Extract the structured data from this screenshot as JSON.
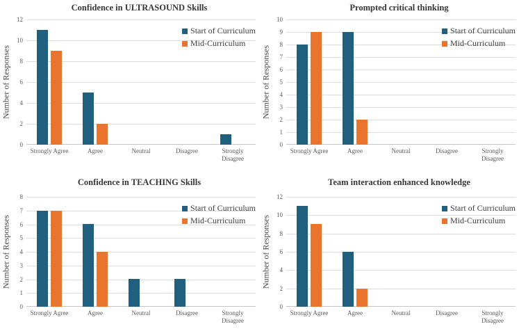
{
  "colors": {
    "series_start": "#215f7e",
    "series_mid": "#e8742e",
    "gridline": "#dcdcdc",
    "axis_line": "#c6c6c6",
    "title_text": "#373737",
    "tick_text": "#595959"
  },
  "chart_data": [
    {
      "type": "bar",
      "title": "Confidence in ULTRASOUND Skills",
      "ylabel": "Number of Responses",
      "xlabel": "",
      "categories": [
        "Strongly Agree",
        "Agree",
        "Neutral",
        "Disagree",
        "Strongly Disagree"
      ],
      "series": [
        {
          "name": "Start of Curriculum",
          "color": "#215f7e",
          "values": [
            11,
            5,
            0,
            0,
            1
          ]
        },
        {
          "name": "Mid-Curriculum",
          "color": "#e8742e",
          "values": [
            9,
            2,
            0,
            0,
            0
          ]
        }
      ],
      "ylim": [
        0,
        12
      ],
      "ytick_step": 2,
      "grid": true,
      "legend_position": "top-right"
    },
    {
      "type": "bar",
      "title": "Prompted critical thinking",
      "ylabel": "Number of Responses",
      "xlabel": "",
      "categories": [
        "Strongly Agree",
        "Agree",
        "Neutral",
        "Disagree",
        "Strongly Disagree"
      ],
      "series": [
        {
          "name": "Start of Curriculum",
          "color": "#215f7e",
          "values": [
            8,
            9,
            0,
            0,
            0
          ]
        },
        {
          "name": "Mid-Curriculum",
          "color": "#e8742e",
          "values": [
            9,
            2,
            0,
            0,
            0
          ]
        }
      ],
      "ylim": [
        0,
        10
      ],
      "ytick_step": 1,
      "grid": true,
      "legend_position": "top-right"
    },
    {
      "type": "bar",
      "title": "Confidence in TEACHING Skills",
      "ylabel": "Number of Responses",
      "xlabel": "",
      "categories": [
        "Strongly Agree",
        "Agree",
        "Neutral",
        "Disagree",
        "Strongly Disagree"
      ],
      "series": [
        {
          "name": "Start of Curriculum",
          "color": "#215f7e",
          "values": [
            7,
            6,
            2,
            2,
            0
          ]
        },
        {
          "name": "Mid-Curriculum",
          "color": "#e8742e",
          "values": [
            7,
            4,
            0,
            0,
            0
          ]
        }
      ],
      "ylim": [
        0,
        8
      ],
      "ytick_step": 1,
      "grid": true,
      "legend_position": "top-right"
    },
    {
      "type": "bar",
      "title": "Team interaction enhanced knowledge",
      "ylabel": "Number of Responses",
      "xlabel": "",
      "categories": [
        "Strongly Agree",
        "Agree",
        "Neutral",
        "Disagree",
        "Strongly Disagree"
      ],
      "series": [
        {
          "name": "Start of Curriculum",
          "color": "#215f7e",
          "values": [
            11,
            6,
            0,
            0,
            0
          ]
        },
        {
          "name": "Mid-Curriculum",
          "color": "#e8742e",
          "values": [
            9,
            2,
            0,
            0,
            0
          ]
        }
      ],
      "ylim": [
        0,
        12
      ],
      "ytick_step": 2,
      "grid": true,
      "legend_position": "top-right"
    }
  ]
}
